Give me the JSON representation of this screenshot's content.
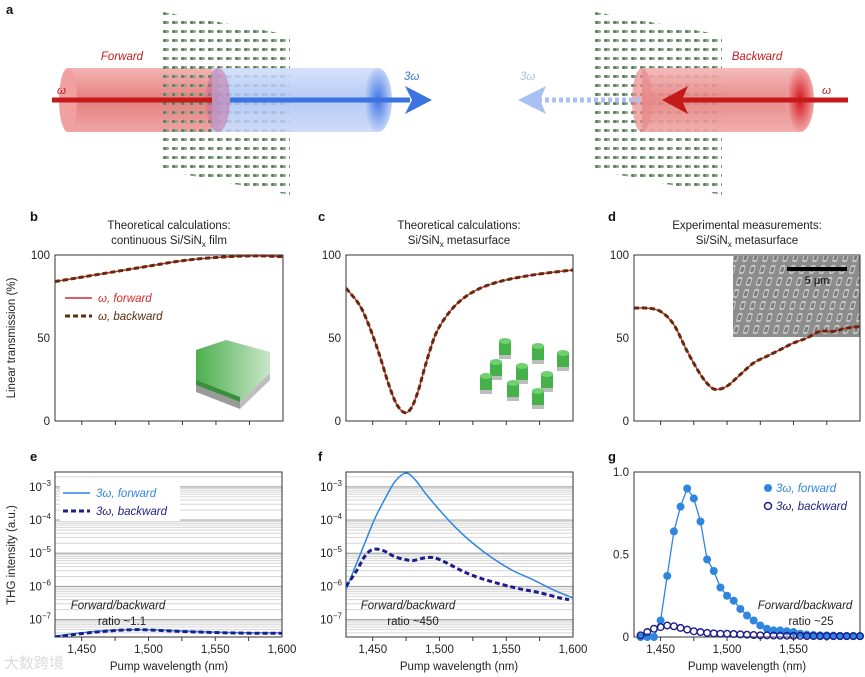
{
  "panel_a": {
    "label": "a",
    "forward_label": "Forward",
    "backward_label": "Backward",
    "omega_left": "ω",
    "omega_right": "ω",
    "third_harmonic_forward": "3ω",
    "third_harmonic_backward": "3ω",
    "colors": {
      "pump": "#cc1f1f",
      "third_harmonic": "#3b73e0",
      "third_harmonic_weak": "#a9c1f2"
    }
  },
  "ylabel_top": "Linear transmission (%)",
  "ylabel_bottom": "THG intensity (a.u.)",
  "xlabel": "Pump wavelength (nm)",
  "watermark": "大数跨境",
  "chart_data": [
    {
      "id": "b",
      "label": "b",
      "type": "line",
      "title": [
        "Theoretical calculations:",
        "continuous Si/SiN",
        "x",
        " film"
      ],
      "ylim": [
        0,
        100
      ],
      "xlim": [
        1430,
        1600
      ],
      "yticks": [
        "0",
        "50",
        "100"
      ],
      "xticks": [],
      "legend": {
        "placement": "left",
        "entries": [
          "ω, forward",
          "ω, backward"
        ]
      },
      "series": [
        {
          "name": "ω, forward",
          "style": "solid",
          "color": "#d42a2a",
          "x": [
            1430,
            1445,
            1460,
            1475,
            1490,
            1505,
            1520,
            1535,
            1550,
            1565,
            1580,
            1600
          ],
          "y": [
            84,
            86,
            88,
            90,
            92,
            94,
            96,
            97.5,
            98.5,
            99.2,
            99.5,
            99
          ]
        },
        {
          "name": "ω, backward",
          "style": "dashed",
          "color": "#5a2e0e",
          "x": [
            1430,
            1445,
            1460,
            1475,
            1490,
            1505,
            1520,
            1535,
            1550,
            1565,
            1580,
            1600
          ],
          "y": [
            84,
            86,
            88,
            90,
            92,
            94,
            96,
            97.5,
            98.5,
            99.2,
            99.5,
            99
          ]
        }
      ]
    },
    {
      "id": "c",
      "label": "c",
      "type": "line",
      "title": [
        "Theoretical calculations:",
        "Si/SiN",
        "x",
        " metasurface"
      ],
      "ylim": [
        0,
        100
      ],
      "xlim": [
        1430,
        1600
      ],
      "yticks": [
        "0",
        "50",
        "100"
      ],
      "xticks": [],
      "series": [
        {
          "name": "ω, forward",
          "style": "solid",
          "color": "#d42a2a",
          "x": [
            1430,
            1440,
            1447,
            1455,
            1462,
            1468,
            1474,
            1479,
            1484,
            1490,
            1497,
            1505,
            1515,
            1528,
            1545,
            1570,
            1600
          ],
          "y": [
            80,
            70,
            58,
            40,
            22,
            10,
            5,
            8,
            18,
            35,
            52,
            63,
            72,
            79,
            84,
            88,
            91
          ]
        },
        {
          "name": "ω, backward",
          "style": "dashed",
          "color": "#5a2e0e",
          "x": [
            1430,
            1440,
            1447,
            1455,
            1462,
            1468,
            1474,
            1479,
            1484,
            1490,
            1497,
            1505,
            1515,
            1528,
            1545,
            1570,
            1600
          ],
          "y": [
            80,
            70,
            58,
            40,
            22,
            10,
            5,
            8,
            18,
            35,
            52,
            63,
            72,
            79,
            84,
            88,
            91
          ]
        }
      ]
    },
    {
      "id": "d",
      "label": "d",
      "type": "line",
      "title": [
        "Experimental measurements:",
        "Si/SiN",
        "x",
        " metasurface"
      ],
      "ylim": [
        0,
        100
      ],
      "xlim": [
        1430,
        1600
      ],
      "yticks": [
        "0",
        "50",
        "100"
      ],
      "xticks": [],
      "inset_scale_bar": "5 μm",
      "series": [
        {
          "name": "ω, forward",
          "style": "solid",
          "color": "#d42a2a",
          "x": [
            1430,
            1440,
            1450,
            1460,
            1470,
            1480,
            1487,
            1492,
            1500,
            1510,
            1520,
            1530,
            1540,
            1550,
            1560,
            1570,
            1580,
            1590,
            1600
          ],
          "y": [
            68,
            68,
            66,
            58,
            42,
            28,
            21,
            19,
            21,
            28,
            35,
            39,
            43,
            47,
            50,
            54,
            54,
            56,
            57
          ]
        },
        {
          "name": "ω, backward",
          "style": "dashed",
          "color": "#5a2e0e",
          "x": [
            1430,
            1440,
            1450,
            1460,
            1470,
            1480,
            1487,
            1492,
            1500,
            1510,
            1520,
            1530,
            1540,
            1550,
            1560,
            1570,
            1580,
            1590,
            1600
          ],
          "y": [
            68,
            68,
            66,
            58,
            42,
            28,
            21,
            19,
            21,
            28,
            35,
            39,
            43,
            47,
            50,
            54,
            54,
            56,
            57
          ]
        }
      ]
    },
    {
      "id": "e",
      "label": "e",
      "type": "line",
      "yscale": "log",
      "ylim": [
        3e-08,
        0.0028
      ],
      "xlim": [
        1430,
        1600
      ],
      "yticks": [
        "-3",
        "-4",
        "-5",
        "-6",
        "-7"
      ],
      "xticks": [
        "1,450",
        "1,500",
        "1,550",
        "1,600"
      ],
      "xtick_values": [
        1450,
        1500,
        1550,
        1600
      ],
      "legend": {
        "placement": "top-left",
        "entries": [
          "3ω, forward",
          "3ω, backward"
        ]
      },
      "annotation": [
        "Forward/backward",
        "ratio ~1.1"
      ],
      "series": [
        {
          "name": "3ω, forward",
          "style": "solid",
          "color": "#2f86e0",
          "x": [
            1430,
            1445,
            1460,
            1475,
            1490,
            1505,
            1520,
            1540,
            1560,
            1580,
            1600
          ],
          "y": [
            3.2e-08,
            3.8e-08,
            4.4e-08,
            4.8e-08,
            5e-08,
            4.9e-08,
            4.6e-08,
            4.3e-08,
            4.1e-08,
            4e-08,
            4e-08
          ]
        },
        {
          "name": "3ω, backward",
          "style": "dashed",
          "color": "#1c1c8c",
          "x": [
            1430,
            1445,
            1460,
            1475,
            1490,
            1505,
            1520,
            1540,
            1560,
            1580,
            1600
          ],
          "y": [
            3e-08,
            3.6e-08,
            4.2e-08,
            4.7e-08,
            5e-08,
            4.8e-08,
            4.5e-08,
            4.2e-08,
            4e-08,
            3.9e-08,
            3.9e-08
          ]
        }
      ]
    },
    {
      "id": "f",
      "label": "f",
      "type": "line",
      "yscale": "log",
      "ylim": [
        3e-08,
        0.0028
      ],
      "xlim": [
        1430,
        1600
      ],
      "yticks": [
        "-3",
        "-4",
        "-5",
        "-6",
        "-7"
      ],
      "xticks": [
        "1,450",
        "1,500",
        "1,550",
        "1,600"
      ],
      "xtick_values": [
        1450,
        1500,
        1550,
        1600
      ],
      "annotation": [
        "Forward/backward",
        "ratio ~450"
      ],
      "series": [
        {
          "name": "3ω, forward",
          "style": "solid",
          "color": "#2f86e0",
          "x": [
            1430,
            1437,
            1445,
            1452,
            1460,
            1467,
            1475,
            1482,
            1490,
            1500,
            1512,
            1525,
            1540,
            1555,
            1570,
            1585,
            1600
          ],
          "y": [
            8e-07,
            4e-06,
            2.5e-05,
            0.00012,
            0.0005,
            0.0015,
            0.0026,
            0.0016,
            0.0006,
            0.0002,
            6e-05,
            2e-05,
            7e-06,
            3e-06,
            1.6e-06,
            8e-07,
            4.5e-07
          ]
        },
        {
          "name": "3ω, backward",
          "style": "dashed",
          "color": "#1c1c8c",
          "x": [
            1430,
            1438,
            1444,
            1450,
            1458,
            1466,
            1474,
            1480,
            1487,
            1494,
            1500,
            1508,
            1518,
            1530,
            1545,
            1560,
            1575,
            1590,
            1597
          ],
          "y": [
            1e-06,
            3e-06,
            8e-06,
            1.3e-05,
            1.2e-05,
            8e-06,
            6.5e-06,
            6e-06,
            7e-06,
            7.5e-06,
            6.5e-06,
            4.5e-06,
            2.8e-06,
            1.8e-06,
            1.2e-06,
            8.5e-07,
            6.5e-07,
            4.5e-07,
            4e-07
          ]
        }
      ]
    },
    {
      "id": "g",
      "label": "g",
      "type": "scatter",
      "ylim": [
        0,
        1
      ],
      "xlim": [
        1430,
        1600
      ],
      "yticks": [
        "0",
        "0.5",
        "1.0"
      ],
      "xticks": [
        "1,450",
        "1,500",
        "1,550"
      ],
      "xtick_values": [
        1450,
        1500,
        1550
      ],
      "legend": {
        "placement": "top-right",
        "entries": [
          "3ω, forward",
          "3ω, backward"
        ]
      },
      "annotation": [
        "Forward/backward",
        "ratio ~25"
      ],
      "series": [
        {
          "name": "3ω, forward",
          "marker": "filled-circle",
          "color": "#2f86e0",
          "x": [
            1435,
            1440,
            1445,
            1450,
            1455,
            1460,
            1465,
            1470,
            1475,
            1480,
            1485,
            1490,
            1495,
            1500,
            1505,
            1510,
            1515,
            1520,
            1525,
            1530,
            1535,
            1540,
            1545,
            1550,
            1555,
            1560,
            1565,
            1570,
            1575,
            1580,
            1585,
            1590,
            1595,
            1600
          ],
          "y": [
            0.0,
            0.0,
            0.0,
            0.1,
            0.37,
            0.64,
            0.79,
            0.9,
            0.84,
            0.7,
            0.47,
            0.4,
            0.3,
            0.25,
            0.22,
            0.17,
            0.13,
            0.1,
            0.07,
            0.05,
            0.04,
            0.04,
            0.035,
            0.03,
            0.02,
            0.015,
            0.012,
            0.01,
            0.01,
            0.008,
            0.007,
            0.006,
            0.006,
            0.005
          ]
        },
        {
          "name": "3ω, backward",
          "marker": "open-circle",
          "color": "#1c1c8c",
          "x": [
            1435,
            1440,
            1445,
            1450,
            1455,
            1460,
            1465,
            1470,
            1475,
            1480,
            1485,
            1490,
            1495,
            1500,
            1505,
            1510,
            1515,
            1520,
            1525,
            1530,
            1535,
            1540,
            1545,
            1550,
            1555,
            1560,
            1565,
            1570,
            1575,
            1580,
            1585,
            1590,
            1595,
            1600
          ],
          "y": [
            0.01,
            0.03,
            0.05,
            0.06,
            0.07,
            0.065,
            0.055,
            0.045,
            0.035,
            0.03,
            0.025,
            0.022,
            0.02,
            0.02,
            0.018,
            0.016,
            0.014,
            0.012,
            0.01,
            0.01,
            0.009,
            0.008,
            0.008,
            0.007,
            0.007,
            0.006,
            0.006,
            0.005,
            0.005,
            0.005,
            0.005,
            0.005,
            0.005,
            0.005
          ]
        }
      ]
    }
  ]
}
